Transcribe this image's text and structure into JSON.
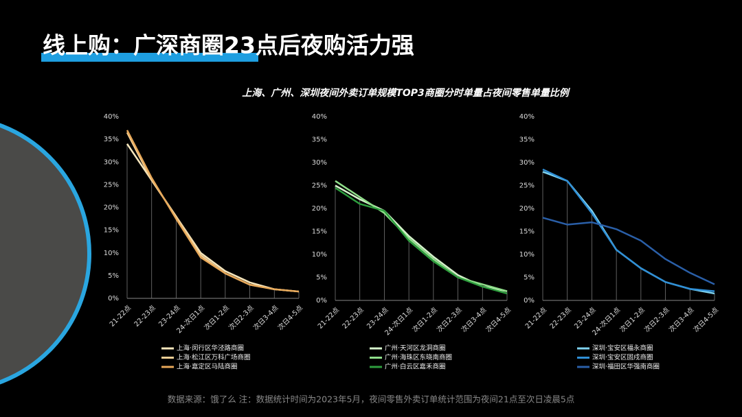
{
  "title": "线上购：广深商圈23点后夜购活力强",
  "subtitle": "上海、广州、深圳夜间外卖订单规模TOP3商圈分时单量占夜间零售单量比例",
  "source": "数据来源：饿了么    注：数据统计时间为2023年5月，夜间零售外卖订单统计范围为夜间21点至次日凌晨5点",
  "chart_data": [
    {
      "type": "line",
      "categories": [
        "21-22点",
        "22-23点",
        "23-24点",
        "24-次日1点",
        "次日1-2点",
        "次日2-3点",
        "次日3-4点",
        "次日4-5点"
      ],
      "series": [
        {
          "name": "上海·闵行区华泾路商圈",
          "color": "#f7e7bd",
          "values": [
            34,
            26,
            18,
            10,
            6,
            3.5,
            2,
            1.5
          ]
        },
        {
          "name": "上海·松江区万科广场商圈",
          "color": "#f2cf95",
          "values": [
            36.5,
            26,
            18,
            9.5,
            5.5,
            3,
            2,
            1.5
          ]
        },
        {
          "name": "上海·嘉定区马陆商圈",
          "color": "#e8a95a",
          "values": [
            37,
            26.5,
            17.5,
            9,
            5.5,
            3,
            2,
            1.5
          ]
        }
      ],
      "ylim": [
        0,
        40
      ],
      "yticks": [
        {
          "value": 0,
          "label": "0%"
        },
        {
          "value": 5,
          "label": "5%"
        },
        {
          "value": 10,
          "label": "10%"
        },
        {
          "value": 15,
          "label": "15%"
        },
        {
          "value": 20,
          "label": "20%"
        },
        {
          "value": 25,
          "label": "25%"
        },
        {
          "value": 30,
          "label": "30%"
        },
        {
          "value": 35,
          "label": "35%"
        },
        {
          "value": 40,
          "label": "40%"
        }
      ]
    },
    {
      "type": "line",
      "categories": [
        "21-22点",
        "22-23点",
        "23-24点",
        "24-次日1点",
        "次日1-2点",
        "次日2-3点",
        "次日3-4点",
        "次日4-5点"
      ],
      "series": [
        {
          "name": "广州·天河区龙洞商圈",
          "color": "#d6f3cc",
          "values": [
            25,
            22,
            19.5,
            14,
            9.5,
            5.5,
            3,
            2
          ]
        },
        {
          "name": "广州·海珠区东晓南商圈",
          "color": "#8fdf8a",
          "values": [
            26,
            22.5,
            19,
            13.5,
            9,
            5,
            3.5,
            2
          ]
        },
        {
          "name": "广州·白云区嘉禾商圈",
          "color": "#2e9e3e",
          "values": [
            24.5,
            21,
            19.5,
            13,
            8.5,
            5,
            3,
            1.5
          ]
        }
      ],
      "ylim": [
        0,
        40
      ],
      "yticks": [
        {
          "value": 0,
          "label": "0%"
        },
        {
          "value": 5,
          "label": "5%"
        },
        {
          "value": 10,
          "label": "10%"
        },
        {
          "value": 15,
          "label": "15%"
        },
        {
          "value": 20,
          "label": "20%"
        },
        {
          "value": 25,
          "label": "25%"
        },
        {
          "value": 30,
          "label": "30%"
        },
        {
          "value": 35,
          "label": "35%"
        },
        {
          "value": 40,
          "label": "40%"
        }
      ]
    },
    {
      "type": "line",
      "categories": [
        "21-22点",
        "22-23点",
        "23-24点",
        "24-次日1点",
        "次日1-2点",
        "次日2-3点",
        "次日3-4点",
        "次日4-5点"
      ],
      "series": [
        {
          "name": "深圳·宝安区福永商圈",
          "color": "#7fd3f0",
          "values": [
            28,
            26,
            19.5,
            11,
            7,
            4,
            2.5,
            1.5
          ]
        },
        {
          "name": "深圳·宝安区固戍商圈",
          "color": "#2f8fd6",
          "values": [
            28.5,
            26,
            19,
            11,
            7,
            4,
            2.5,
            2
          ]
        },
        {
          "name": "深圳·福田区华强南商圈",
          "color": "#2a5fa8",
          "values": [
            18,
            16.5,
            17,
            15.5,
            13,
            9,
            6,
            3.5
          ]
        }
      ],
      "ylim": [
        0,
        40
      ],
      "yticks": [
        {
          "value": 0,
          "label": "0%"
        },
        {
          "value": 5,
          "label": "5%"
        },
        {
          "value": 10,
          "label": "10%"
        },
        {
          "value": 15,
          "label": "15%"
        },
        {
          "value": 20,
          "label": "20%"
        },
        {
          "value": 25,
          "label": "25%"
        },
        {
          "value": 30,
          "label": "30%"
        },
        {
          "value": 35,
          "label": "35%"
        },
        {
          "value": 40,
          "label": "40%"
        }
      ]
    }
  ]
}
